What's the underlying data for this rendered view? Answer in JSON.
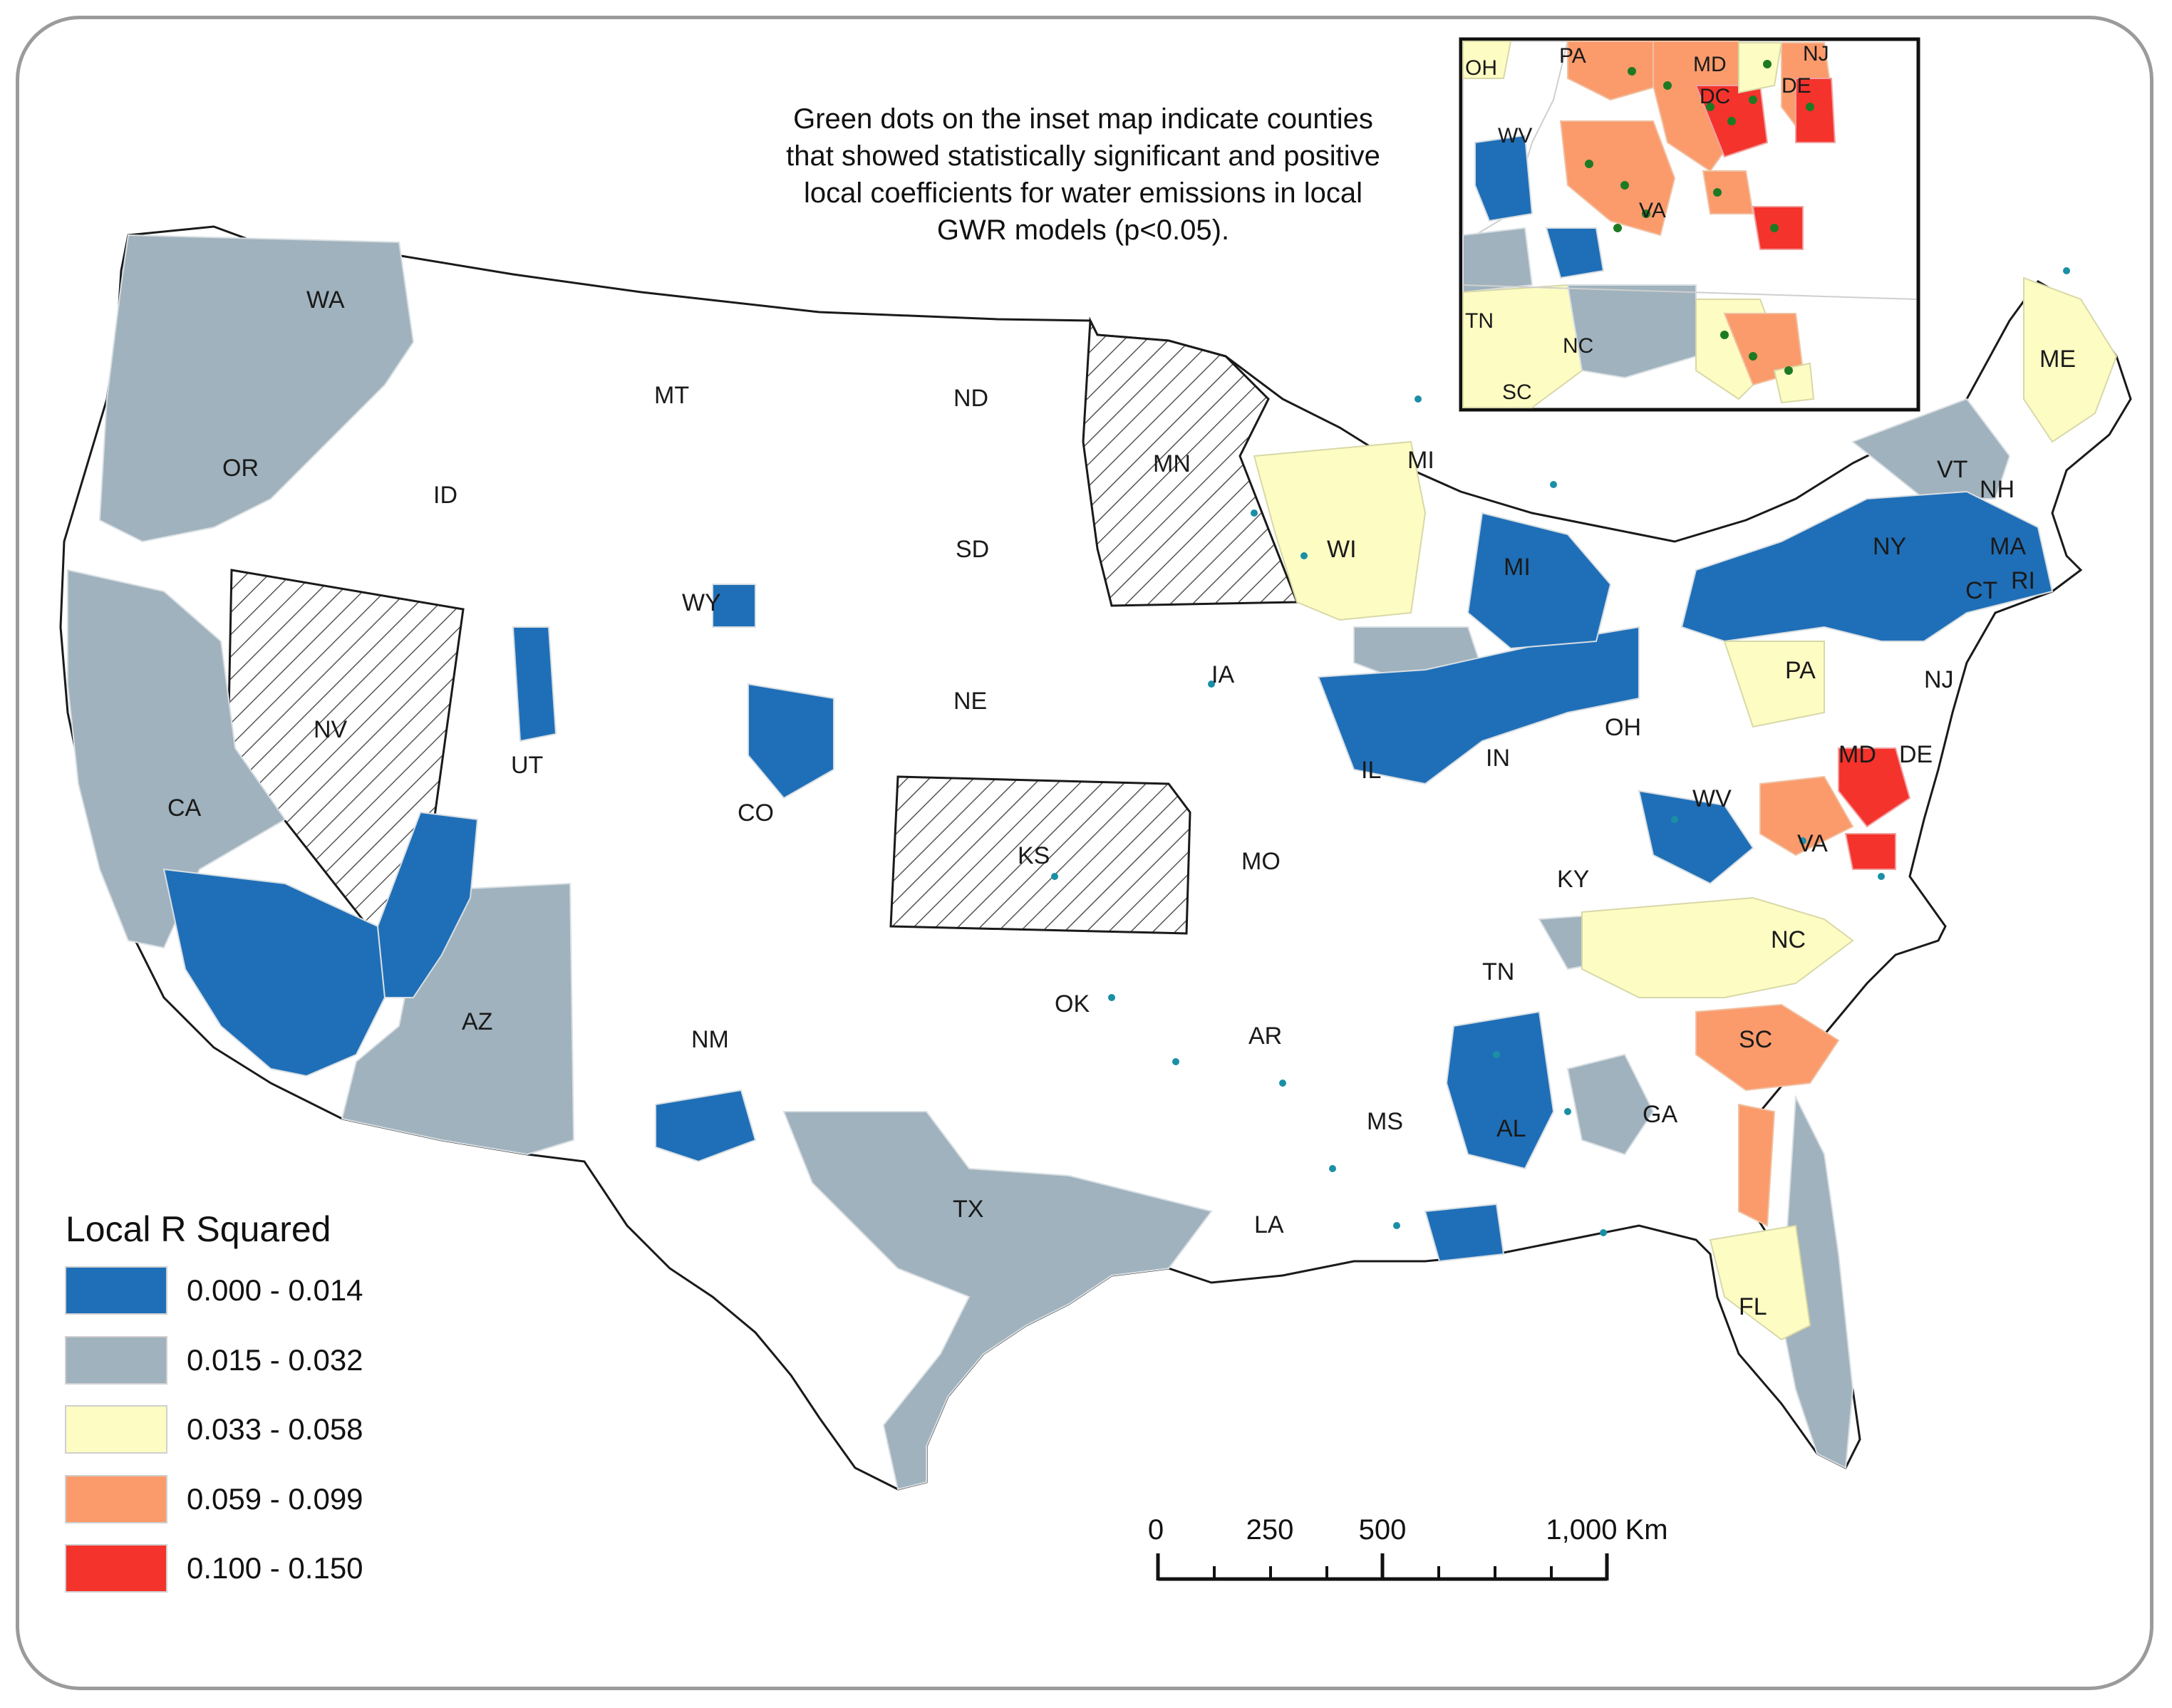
{
  "colors": {
    "class_1": "#1f6fb8",
    "class_2": "#9fb2bd",
    "class_3": "#fdfcc3",
    "class_4": "#fb9a6b",
    "class_5": "#f4332c",
    "significant_dot_main": "#1b8fa5",
    "significant_dot_inset": "#1d7a23",
    "boundary": "#1a1a1a",
    "no_data_hatch": "#555555"
  },
  "note": {
    "lines": [
      "Green dots on the inset map indicate counties",
      "that showed statistically significant and positive",
      "local coefficients for water emissions in local",
      "GWR models (p<0.05)."
    ]
  },
  "legend": {
    "title": "Local R Squared",
    "classes": [
      {
        "label": "0.000 - 0.014",
        "color": "#1f6fb8"
      },
      {
        "label": "0.015 - 0.032",
        "color": "#9fb2bd"
      },
      {
        "label": "0.033 - 0.058",
        "color": "#fdfcc3"
      },
      {
        "label": "0.059 - 0.099",
        "color": "#fb9a6b"
      },
      {
        "label": "0.100 - 0.150",
        "color": "#f4332c"
      }
    ]
  },
  "scale_bar": {
    "labels": [
      "0",
      "250",
      "500",
      "1,000 Km"
    ]
  },
  "states": {
    "WA": "WA",
    "OR": "OR",
    "CA": "CA",
    "NV": "NV",
    "ID": "ID",
    "MT": "MT",
    "WY": "WY",
    "UT": "UT",
    "AZ": "AZ",
    "CO": "CO",
    "NM": "NM",
    "ND": "ND",
    "SD": "SD",
    "NE": "NE",
    "KS": "KS",
    "OK": "OK",
    "TX": "TX",
    "MN": "MN",
    "IA": "IA",
    "MO": "MO",
    "AR": "AR",
    "LA": "LA",
    "WI": "WI",
    "IL": "IL",
    "MS": "MS",
    "MI": "MI",
    "MI2": "MI",
    "IN": "IN",
    "KY": "KY",
    "TN": "TN",
    "AL": "AL",
    "OH": "OH",
    "GA": "GA",
    "FL": "FL",
    "WV": "WV",
    "VA": "VA",
    "NC": "NC",
    "SC": "SC",
    "PA": "PA",
    "MD": "MD",
    "DE": "DE",
    "NJ": "NJ",
    "NY": "NY",
    "CT": "CT",
    "RI": "RI",
    "MA": "MA",
    "VT": "VT",
    "NH": "NH",
    "ME": "ME"
  },
  "inset_states": {
    "OH": "OH",
    "PA": "PA",
    "MD": "MD",
    "NJ": "NJ",
    "DE": "DE",
    "DC": "DC",
    "WV": "WV",
    "VA": "VA",
    "TN": "TN",
    "NC": "NC",
    "SC": "SC"
  }
}
